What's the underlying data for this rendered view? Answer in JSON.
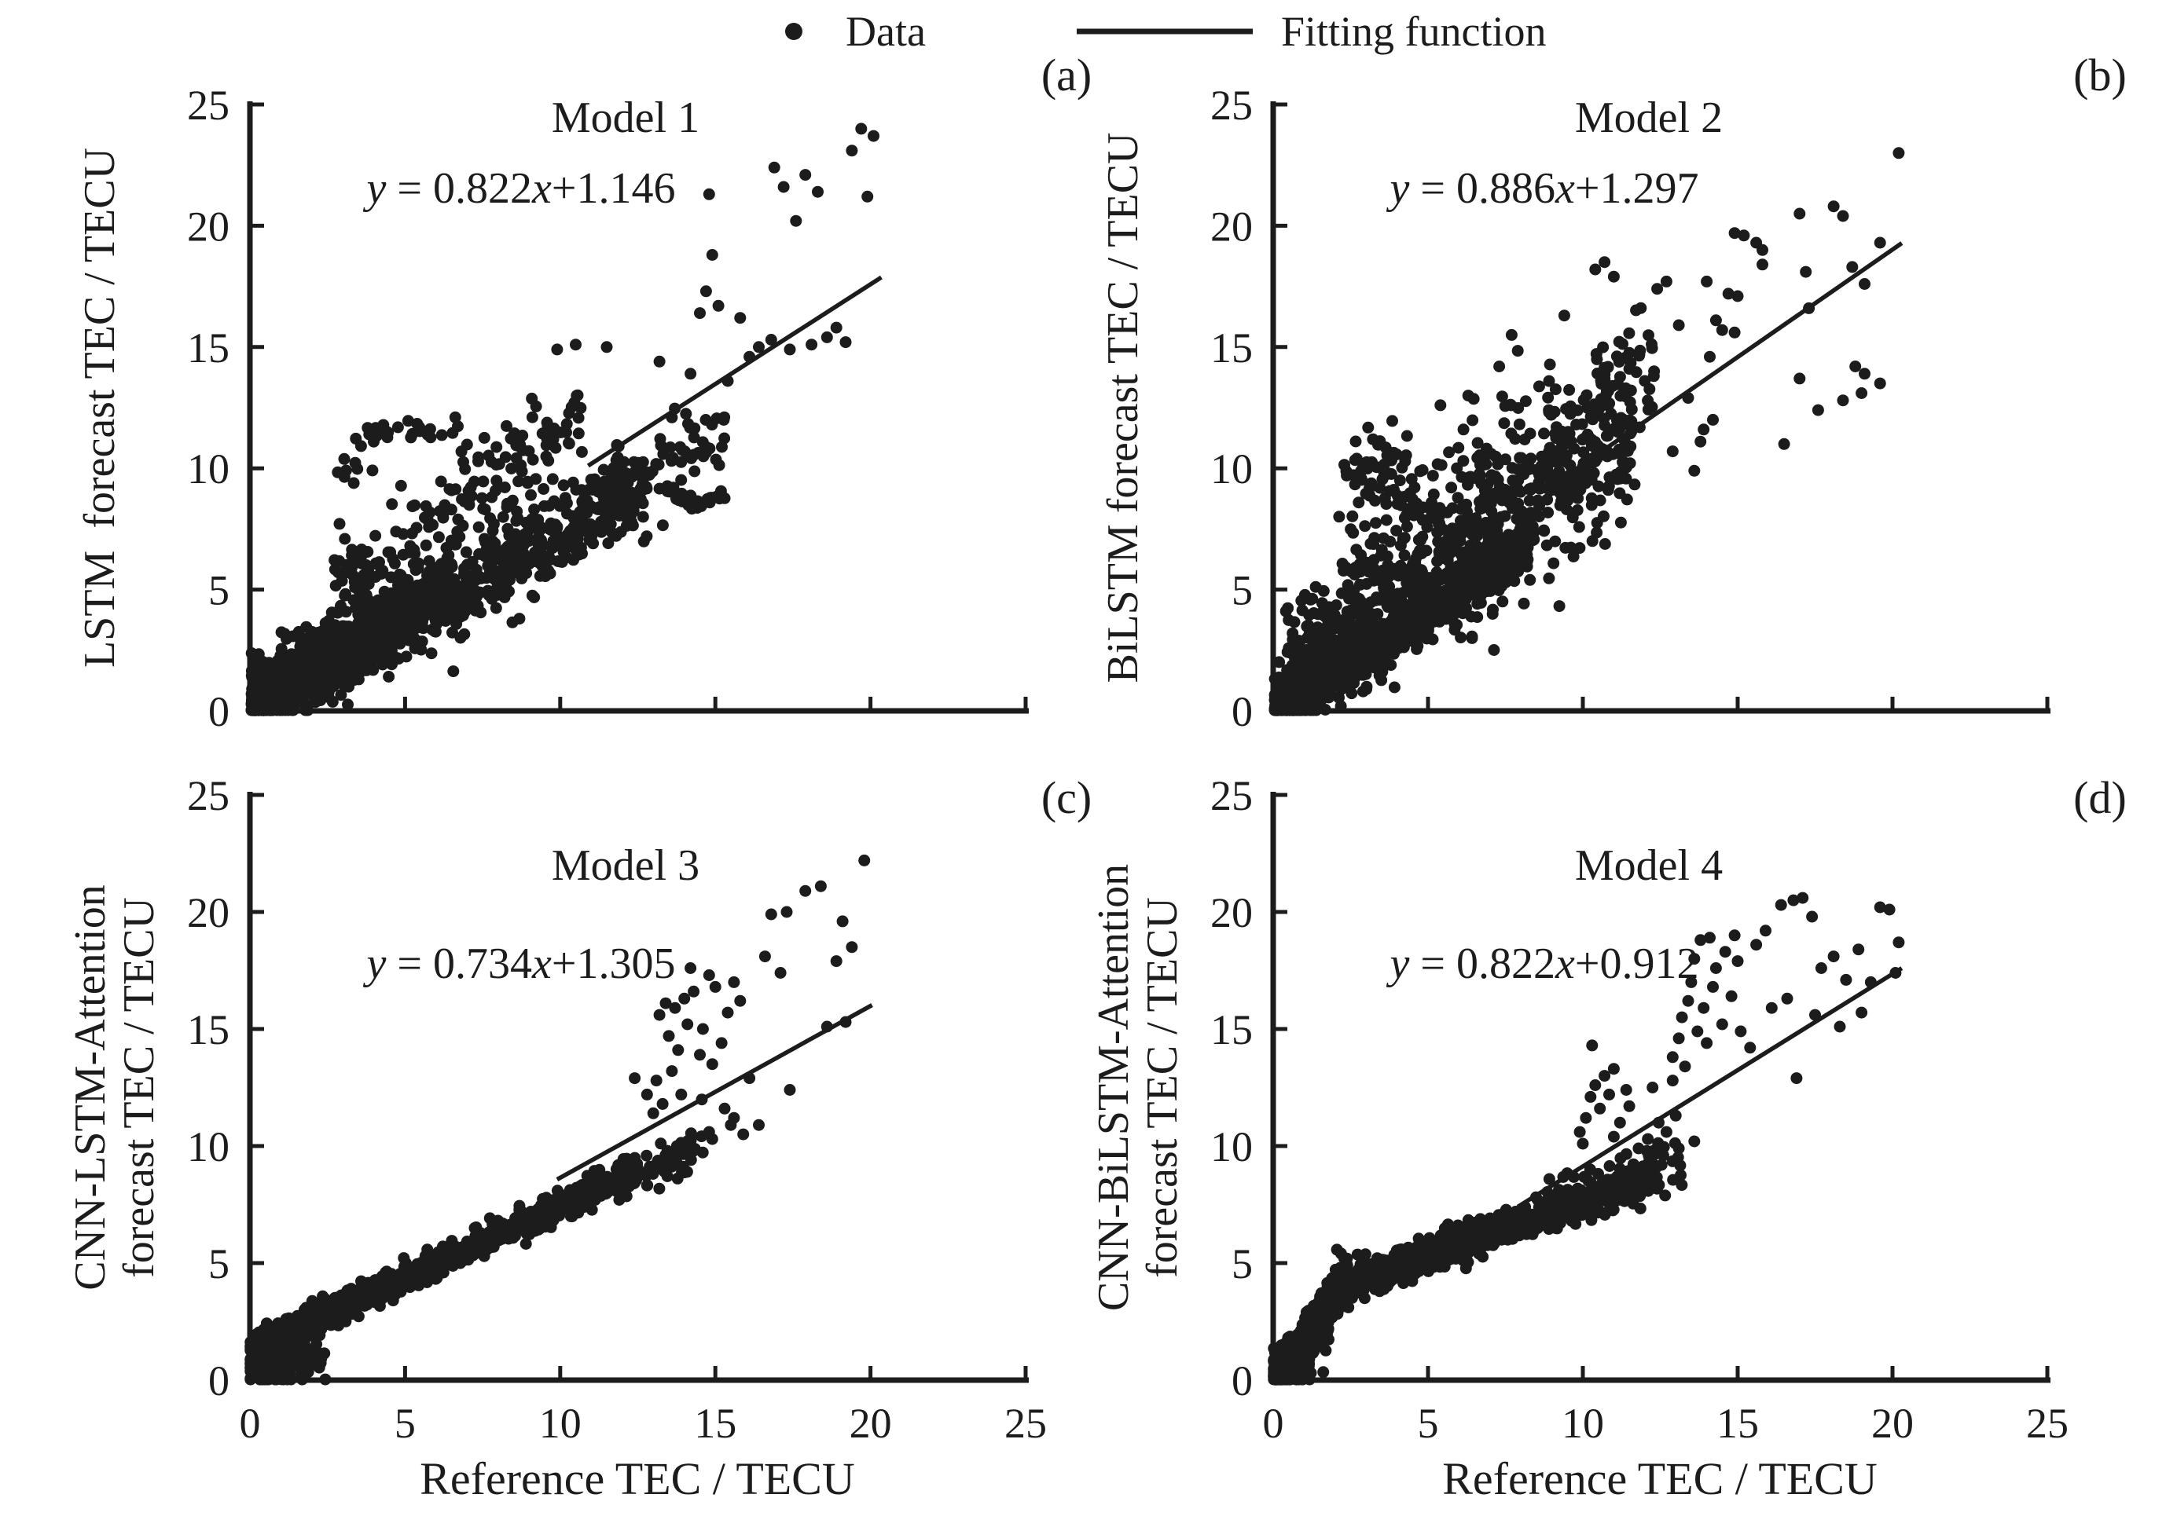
{
  "figure": {
    "bg": "#ffffff",
    "ink": "#1c1c1c"
  },
  "legend": {
    "data_label": "Data",
    "fit_label": "Fitting function"
  },
  "shared": {
    "x_label": "Reference TEC / TECU",
    "x_ticks": [
      "0",
      "5",
      "10",
      "15",
      "20",
      "25"
    ],
    "y_ticks": [
      "0",
      "5",
      "10",
      "15",
      "20",
      "25"
    ]
  },
  "chart_data": [
    {
      "type": "scatter",
      "panel": "(a)",
      "title": "Model 1",
      "ylabel_lines": [
        "LSTM  forecast TEC / TECU"
      ],
      "eq": {
        "y": "y",
        "mid": " = 0.822",
        "x": "x",
        "rest": "+1.146"
      },
      "fit": {
        "slope": 0.822,
        "intercept": 1.146,
        "x_draw": [
          10.9,
          20.35
        ]
      },
      "axis_range": {
        "x": [
          0,
          25
        ],
        "y": [
          0,
          25
        ]
      },
      "show_x_tick_labels": false,
      "groups": [
        {
          "type": "band",
          "seed": 11,
          "n": 950,
          "x0": 0.05,
          "x1": 12.8,
          "pow": 1.45,
          "a": 0.7,
          "b": 0.25,
          "sy": 0.85
        },
        {
          "type": "band",
          "seed": 12,
          "n": 620,
          "x0": 0.05,
          "x1": 6.6,
          "pow": 1.25,
          "a": 0.78,
          "b": 0.12,
          "sy": 0.5
        },
        {
          "type": "band",
          "seed": 13,
          "n": 210,
          "x0": 2.6,
          "x1": 10.7,
          "pow": 1.1,
          "a": 0.92,
          "b": 2.1,
          "sy": 1.15
        },
        {
          "type": "band",
          "seed": 14,
          "n": 90,
          "x0": 10.4,
          "x1": 15.3,
          "pow": 1.0,
          "a": 0.62,
          "b": 1.9,
          "sy": 0.75
        },
        {
          "type": "cluster",
          "seed": 15,
          "n": 16,
          "cx": 4.35,
          "cy": 11.45,
          "rx": 0.55,
          "ry": 0.42
        },
        {
          "type": "cluster",
          "seed": 16,
          "n": 10,
          "cx": 5.95,
          "cy": 11.6,
          "rx": 0.4,
          "ry": 0.4
        },
        {
          "type": "cluster",
          "seed": 17,
          "n": 8,
          "cx": 3.3,
          "cy": 10.0,
          "rx": 0.3,
          "ry": 0.4
        },
        {
          "type": "arc",
          "seed": 18,
          "n": 40,
          "x0": 13.35,
          "dx": 1.95,
          "c0": 9.25,
          "c1": -2.4,
          "c2": 2.05,
          "sy": 0.13
        }
      ],
      "outlier_points": [
        [
          14.5,
          16.4
        ],
        [
          14.7,
          17.3
        ],
        [
          14.9,
          18.8
        ],
        [
          14.8,
          21.3
        ],
        [
          15.1,
          16.7
        ],
        [
          15.4,
          13.6
        ],
        [
          14.2,
          13.9
        ],
        [
          13.2,
          14.4
        ],
        [
          11.5,
          15.0
        ],
        [
          13.6,
          12.1
        ],
        [
          9.9,
          14.9
        ],
        [
          16.4,
          15.0
        ],
        [
          16.8,
          15.3
        ],
        [
          17.2,
          21.6
        ],
        [
          16.9,
          22.4
        ],
        [
          17.6,
          20.2
        ],
        [
          17.9,
          22.1
        ],
        [
          18.3,
          21.4
        ],
        [
          18.6,
          15.4
        ],
        [
          18.9,
          15.8
        ],
        [
          19.2,
          15.2
        ],
        [
          19.4,
          23.1
        ],
        [
          19.7,
          24.0
        ],
        [
          20.1,
          23.7
        ],
        [
          19.9,
          21.2
        ],
        [
          17.4,
          14.9
        ],
        [
          18.1,
          15.1
        ],
        [
          16.1,
          14.6
        ],
        [
          15.8,
          16.2
        ],
        [
          10.5,
          15.1
        ]
      ]
    },
    {
      "type": "scatter",
      "panel": "(b)",
      "title": "Model 2",
      "ylabel_lines": [
        "BiLSTM forecast TEC / TECU"
      ],
      "eq": {
        "y": "y",
        "mid": " = 0.886",
        "x": "x",
        "rest": "+1.297"
      },
      "fit": {
        "slope": 0.886,
        "intercept": 1.297,
        "x_draw": [
          8.8,
          20.3
        ]
      },
      "axis_range": {
        "x": [
          0,
          25
        ],
        "y": [
          0,
          25
        ]
      },
      "show_x_tick_labels": false,
      "groups": [
        {
          "type": "band",
          "seed": 21,
          "n": 750,
          "x0": 0.05,
          "x1": 8.3,
          "pow": 1.35,
          "a": 0.82,
          "b": 0.1,
          "sy": 0.6
        },
        {
          "type": "band",
          "seed": 22,
          "n": 600,
          "x0": 0.4,
          "x1": 11.6,
          "pow": 1.15,
          "a": 0.88,
          "b": 1.2,
          "sy": 1.5
        },
        {
          "type": "band",
          "seed": 23,
          "n": 270,
          "x0": 2.2,
          "x1": 12.3,
          "pow": 1.05,
          "a": 0.8,
          "b": 3.6,
          "sy": 1.7
        },
        {
          "type": "cluster",
          "seed": 24,
          "n": 30,
          "cx": 3.6,
          "cy": 10.2,
          "rx": 0.5,
          "ry": 0.85
        },
        {
          "type": "cluster",
          "seed": 25,
          "n": 12,
          "cx": 2.7,
          "cy": 9.6,
          "rx": 0.3,
          "ry": 0.5
        },
        {
          "type": "arc",
          "seed": 26,
          "n": 26,
          "x0": 3.35,
          "dx": 1.35,
          "c0": 3.45,
          "c1": -1.5,
          "c2": 1.3,
          "sy": 0.12
        }
      ],
      "outlier_points": [
        [
          20.2,
          23.0
        ],
        [
          17.0,
          20.5
        ],
        [
          18.1,
          20.8
        ],
        [
          18.4,
          20.4
        ],
        [
          14.9,
          19.7
        ],
        [
          15.2,
          19.6
        ],
        [
          15.6,
          19.3
        ],
        [
          15.8,
          19.0
        ],
        [
          15.8,
          18.4
        ],
        [
          19.6,
          19.3
        ],
        [
          14.0,
          17.7
        ],
        [
          14.7,
          17.2
        ],
        [
          15.0,
          17.1
        ],
        [
          17.2,
          18.1
        ],
        [
          18.7,
          18.3
        ],
        [
          19.1,
          17.6
        ],
        [
          17.3,
          16.6
        ],
        [
          14.3,
          16.1
        ],
        [
          14.5,
          15.7
        ],
        [
          14.9,
          15.6
        ],
        [
          14.1,
          14.6
        ],
        [
          17.0,
          13.7
        ],
        [
          18.8,
          14.2
        ],
        [
          19.1,
          13.9
        ],
        [
          19.6,
          13.5
        ],
        [
          19.0,
          13.1
        ],
        [
          18.4,
          12.8
        ],
        [
          17.6,
          12.4
        ],
        [
          16.5,
          11.0
        ],
        [
          14.2,
          12.0
        ],
        [
          13.9,
          11.6
        ],
        [
          13.8,
          11.1
        ],
        [
          10.4,
          18.2
        ],
        [
          10.7,
          18.5
        ],
        [
          11.0,
          17.9
        ],
        [
          9.4,
          16.3
        ],
        [
          12.4,
          17.4
        ],
        [
          12.7,
          17.7
        ],
        [
          13.1,
          15.9
        ],
        [
          7.3,
          14.2
        ],
        [
          7.7,
          15.5
        ],
        [
          11.5,
          14.1
        ],
        [
          12.0,
          13.6
        ],
        [
          12.3,
          14.0
        ],
        [
          13.4,
          12.9
        ],
        [
          8.9,
          12.4
        ],
        [
          12.9,
          10.7
        ],
        [
          13.6,
          9.9
        ],
        [
          6.3,
          13.0
        ],
        [
          5.4,
          12.6
        ]
      ]
    },
    {
      "type": "scatter",
      "panel": "(c)",
      "title": "Model 3",
      "ylabel_lines": [
        "CNN-LSTM-Attention",
        "forecast TEC / TECU"
      ],
      "eq": {
        "y": "y",
        "mid": " = 0.734",
        "x": "x",
        "rest": "+1.305"
      },
      "fit": {
        "slope": 0.734,
        "intercept": 1.305,
        "x_draw": [
          9.9,
          20.05
        ]
      },
      "axis_range": {
        "x": [
          0,
          25
        ],
        "y": [
          0,
          25
        ]
      },
      "show_x_tick_labels": true,
      "groups": [
        {
          "type": "band",
          "seed": 31,
          "n": 1150,
          "x0": 0.2,
          "x1": 12.5,
          "pow": 1.25,
          "a": 0.615,
          "b": 1.3,
          "sy": 0.3
        },
        {
          "type": "band",
          "seed": 32,
          "n": 70,
          "x0": 11.8,
          "x1": 14.6,
          "pow": 1.0,
          "a": 0.6,
          "b": 1.4,
          "sy": 0.5
        },
        {
          "type": "cluster",
          "seed": 33,
          "n": 150,
          "cx": 0.75,
          "cy": 0.85,
          "rx": 0.5,
          "ry": 0.6
        },
        {
          "type": "cluster",
          "seed": 34,
          "n": 40,
          "cx": 1.7,
          "cy": 1.0,
          "rx": 0.4,
          "ry": 0.45
        }
      ],
      "outlier_points": [
        [
          13.2,
          15.6
        ],
        [
          13.4,
          16.1
        ],
        [
          13.5,
          14.7
        ],
        [
          13.7,
          15.9
        ],
        [
          13.8,
          14.1
        ],
        [
          14.0,
          16.3
        ],
        [
          14.1,
          15.2
        ],
        [
          14.3,
          16.6
        ],
        [
          14.5,
          13.9
        ],
        [
          14.6,
          15.0
        ],
        [
          14.8,
          17.3
        ],
        [
          15.0,
          16.8
        ],
        [
          15.2,
          14.4
        ],
        [
          15.4,
          15.7
        ],
        [
          15.6,
          17.0
        ],
        [
          13.6,
          13.2
        ],
        [
          14.9,
          13.5
        ],
        [
          15.8,
          16.2
        ],
        [
          13.1,
          12.8
        ],
        [
          14.2,
          17.6
        ],
        [
          13.9,
          12.2
        ],
        [
          13.3,
          11.8
        ],
        [
          12.4,
          12.9
        ],
        [
          12.8,
          12.2
        ],
        [
          13.0,
          11.4
        ],
        [
          15.3,
          11.6
        ],
        [
          16.1,
          12.9
        ],
        [
          17.4,
          12.4
        ],
        [
          16.4,
          10.9
        ],
        [
          15.9,
          10.5
        ],
        [
          14.9,
          10.3
        ],
        [
          15.5,
          10.9
        ],
        [
          16.8,
          19.9
        ],
        [
          17.3,
          20.0
        ],
        [
          17.9,
          20.9
        ],
        [
          18.4,
          21.1
        ],
        [
          19.1,
          19.6
        ],
        [
          19.4,
          18.5
        ],
        [
          19.8,
          22.2
        ],
        [
          18.9,
          17.9
        ],
        [
          16.6,
          18.1
        ],
        [
          17.1,
          17.4
        ],
        [
          18.6,
          15.1
        ],
        [
          19.2,
          15.3
        ],
        [
          14.8,
          10.6
        ],
        [
          15.6,
          11.2
        ]
      ]
    },
    {
      "type": "scatter",
      "panel": "(d)",
      "title": "Model 4",
      "ylabel_lines": [
        "CNN-BiLSTM-Attention",
        "forecast TEC / TECU"
      ],
      "eq": {
        "y": "y",
        "mid": " = 0.822",
        "x": "x",
        "rest": "+0.912"
      },
      "fit": {
        "slope": 0.822,
        "intercept": 0.912,
        "x_draw": [
          7.9,
          20.3
        ]
      },
      "axis_range": {
        "x": [
          0,
          25
        ],
        "y": [
          0,
          25
        ]
      },
      "show_x_tick_labels": true,
      "groups": [
        {
          "type": "band",
          "seed": 41,
          "n": 420,
          "x0": 0.05,
          "x1": 1.8,
          "pow": 1.1,
          "a": 1.35,
          "b": 0.05,
          "sy": 0.42
        },
        {
          "type": "band",
          "seed": 42,
          "n": 260,
          "x0": 0.9,
          "x1": 2.4,
          "pow": 1.0,
          "a": 2.0,
          "b": -0.3,
          "sy": 0.45
        },
        {
          "type": "band",
          "seed": 43,
          "n": 850,
          "x0": 2.0,
          "x1": 12.4,
          "pow": 1.15,
          "a": 0.47,
          "b": 2.95,
          "sy": 0.38
        },
        {
          "type": "band",
          "seed": 44,
          "n": 90,
          "x0": 8.5,
          "x1": 13.2,
          "pow": 1.0,
          "a": 0.5,
          "b": 2.8,
          "sy": 0.6
        },
        {
          "type": "cluster",
          "seed": 45,
          "n": 120,
          "cx": 0.45,
          "cy": 0.5,
          "rx": 0.35,
          "ry": 0.4
        }
      ],
      "outlier_points": [
        [
          9.9,
          10.6
        ],
        [
          10.1,
          11.2
        ],
        [
          10.25,
          12.1
        ],
        [
          10.4,
          12.6
        ],
        [
          10.55,
          11.6
        ],
        [
          10.7,
          13.0
        ],
        [
          10.85,
          12.2
        ],
        [
          11.0,
          13.3
        ],
        [
          11.2,
          11.0
        ],
        [
          11.4,
          12.4
        ],
        [
          10.3,
          14.3
        ],
        [
          11.0,
          10.4
        ],
        [
          10.0,
          10.1
        ],
        [
          11.5,
          11.7
        ],
        [
          12.1,
          10.3
        ],
        [
          12.45,
          11.0
        ],
        [
          12.7,
          10.6
        ],
        [
          13.0,
          11.3
        ],
        [
          12.25,
          12.5
        ],
        [
          12.9,
          12.8
        ],
        [
          11.8,
          9.9
        ],
        [
          12.9,
          13.8
        ],
        [
          13.1,
          14.6
        ],
        [
          13.2,
          15.5
        ],
        [
          13.4,
          16.2
        ],
        [
          13.5,
          17.0
        ],
        [
          13.6,
          18.0
        ],
        [
          13.8,
          18.8
        ],
        [
          13.9,
          15.9
        ],
        [
          14.0,
          14.4
        ],
        [
          14.2,
          16.8
        ],
        [
          14.3,
          17.6
        ],
        [
          14.5,
          15.2
        ],
        [
          14.6,
          18.3
        ],
        [
          14.8,
          16.4
        ],
        [
          15.0,
          17.9
        ],
        [
          15.1,
          14.9
        ],
        [
          13.3,
          13.4
        ],
        [
          14.9,
          19.0
        ],
        [
          14.1,
          18.9
        ],
        [
          13.7,
          14.9
        ],
        [
          15.6,
          18.6
        ],
        [
          15.9,
          19.2
        ],
        [
          16.4,
          20.3
        ],
        [
          16.8,
          20.5
        ],
        [
          17.4,
          19.8
        ],
        [
          17.1,
          20.6
        ],
        [
          17.7,
          17.6
        ],
        [
          18.1,
          18.1
        ],
        [
          18.5,
          17.1
        ],
        [
          18.9,
          18.4
        ],
        [
          19.3,
          17.0
        ],
        [
          19.6,
          20.2
        ],
        [
          19.9,
          20.1
        ],
        [
          20.1,
          17.4
        ],
        [
          16.1,
          15.9
        ],
        [
          16.6,
          16.3
        ],
        [
          17.5,
          15.6
        ],
        [
          18.3,
          15.1
        ],
        [
          19.0,
          15.7
        ],
        [
          15.4,
          14.2
        ],
        [
          16.9,
          12.9
        ],
        [
          20.2,
          18.7
        ],
        [
          13.1,
          9.9
        ],
        [
          13.6,
          10.2
        ],
        [
          12.6,
          9.6
        ]
      ]
    }
  ]
}
